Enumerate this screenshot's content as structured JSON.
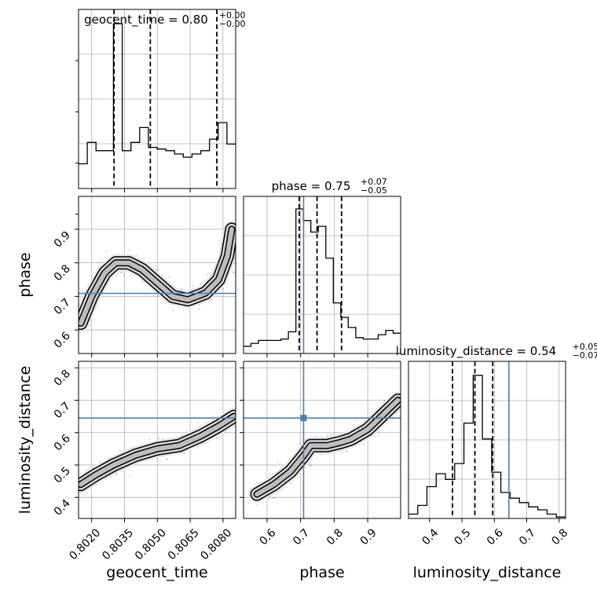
{
  "chart_data": {
    "type": "corner",
    "parameters": [
      "geocent_time",
      "phase",
      "luminosity_distance"
    ],
    "axes": {
      "geocent_time": {
        "label": "geocent_time",
        "lim": [
          0.8014,
          0.80858
        ],
        "ticks": [
          0.802,
          0.8035,
          0.805,
          0.8065,
          0.808
        ],
        "tick_labels": [
          "0.8020",
          "0.8035",
          "0.8050",
          "0.8065",
          "0.8080"
        ]
      },
      "phase": {
        "label": "phase",
        "lim": [
          0.53,
          0.998
        ],
        "ticks": [
          0.6,
          0.7,
          0.8,
          0.9
        ],
        "tick_labels": [
          "0.6",
          "0.7",
          "0.8",
          "0.9"
        ]
      },
      "luminosity_distance": {
        "label": "luminosity_distance",
        "lim": [
          0.335,
          0.82
        ],
        "ticks": [
          0.4,
          0.5,
          0.6,
          0.7,
          0.8
        ],
        "tick_labels": [
          "0.4",
          "0.5",
          "0.6",
          "0.7",
          "0.8"
        ]
      }
    },
    "truths": {
      "geocent_time": null,
      "phase": 0.709,
      "luminosity_distance": 0.645
    },
    "marginal_titles": [
      {
        "param": "geocent_time",
        "label": "geocent_time = ",
        "value": "0.80",
        "plus": "+0.00",
        "minus": "−0.00"
      },
      {
        "param": "phase",
        "label": "phase = ",
        "value": "0.75",
        "plus": "+0.07",
        "minus": "−0.05"
      },
      {
        "param": "luminosity_distance",
        "label": "luminosity_distance = ",
        "value": "0.54",
        "plus": "+0.05",
        "minus": "−0.07"
      }
    ],
    "quantiles": {
      "geocent_time": [
        0.80302,
        0.80468,
        0.80772
      ],
      "phase": [
        0.696,
        0.749,
        0.822
      ],
      "luminosity_distance": [
        0.471,
        0.54,
        0.595
      ]
    },
    "histograms": {
      "geocent_time": [
        0.15,
        0.28,
        0.23,
        0.23,
        1.0,
        0.23,
        0.28,
        0.37,
        0.25,
        0.24,
        0.23,
        0.21,
        0.19,
        0.21,
        0.23,
        0.3,
        0.4,
        0.27
      ],
      "phase": [
        0.05,
        0.07,
        0.09,
        0.09,
        0.09,
        0.1,
        0.15,
        1.0,
        0.92,
        0.84,
        0.88,
        0.66,
        0.35,
        0.25,
        0.18,
        0.11,
        0.1,
        0.1,
        0.13,
        0.16,
        0.14
      ],
      "luminosity_distance": [
        0.03,
        0.09,
        0.22,
        0.31,
        0.27,
        0.38,
        0.66,
        0.99,
        0.55,
        0.32,
        0.18,
        0.14,
        0.11,
        0.08,
        0.06,
        0.03,
        0.01
      ]
    },
    "contours_2d": {
      "phase_vs_geocent_time": {
        "ridge": [
          [
            0.8015,
            0.62
          ],
          [
            0.802,
            0.7
          ],
          [
            0.8026,
            0.77
          ],
          [
            0.8031,
            0.8
          ],
          [
            0.8037,
            0.8
          ],
          [
            0.8043,
            0.78
          ],
          [
            0.805,
            0.74
          ],
          [
            0.8057,
            0.7
          ],
          [
            0.8064,
            0.69
          ],
          [
            0.8072,
            0.71
          ],
          [
            0.8078,
            0.75
          ],
          [
            0.8082,
            0.82
          ],
          [
            0.8084,
            0.9
          ]
        ]
      },
      "luminosity_distance_vs_geocent_time": {
        "ridge": [
          [
            0.8015,
            0.44
          ],
          [
            0.8022,
            0.47
          ],
          [
            0.803,
            0.5
          ],
          [
            0.804,
            0.53
          ],
          [
            0.805,
            0.55
          ],
          [
            0.806,
            0.56
          ],
          [
            0.807,
            0.59
          ],
          [
            0.8078,
            0.62
          ],
          [
            0.8085,
            0.65
          ]
        ]
      },
      "luminosity_distance_vs_phase": {
        "ridge": [
          [
            0.57,
            0.41
          ],
          [
            0.62,
            0.44
          ],
          [
            0.67,
            0.48
          ],
          [
            0.71,
            0.53
          ],
          [
            0.73,
            0.56
          ],
          [
            0.78,
            0.56
          ],
          [
            0.82,
            0.57
          ],
          [
            0.85,
            0.58
          ],
          [
            0.9,
            0.61
          ],
          [
            0.95,
            0.66
          ],
          [
            0.99,
            0.7
          ]
        ]
      }
    },
    "grid": true
  }
}
